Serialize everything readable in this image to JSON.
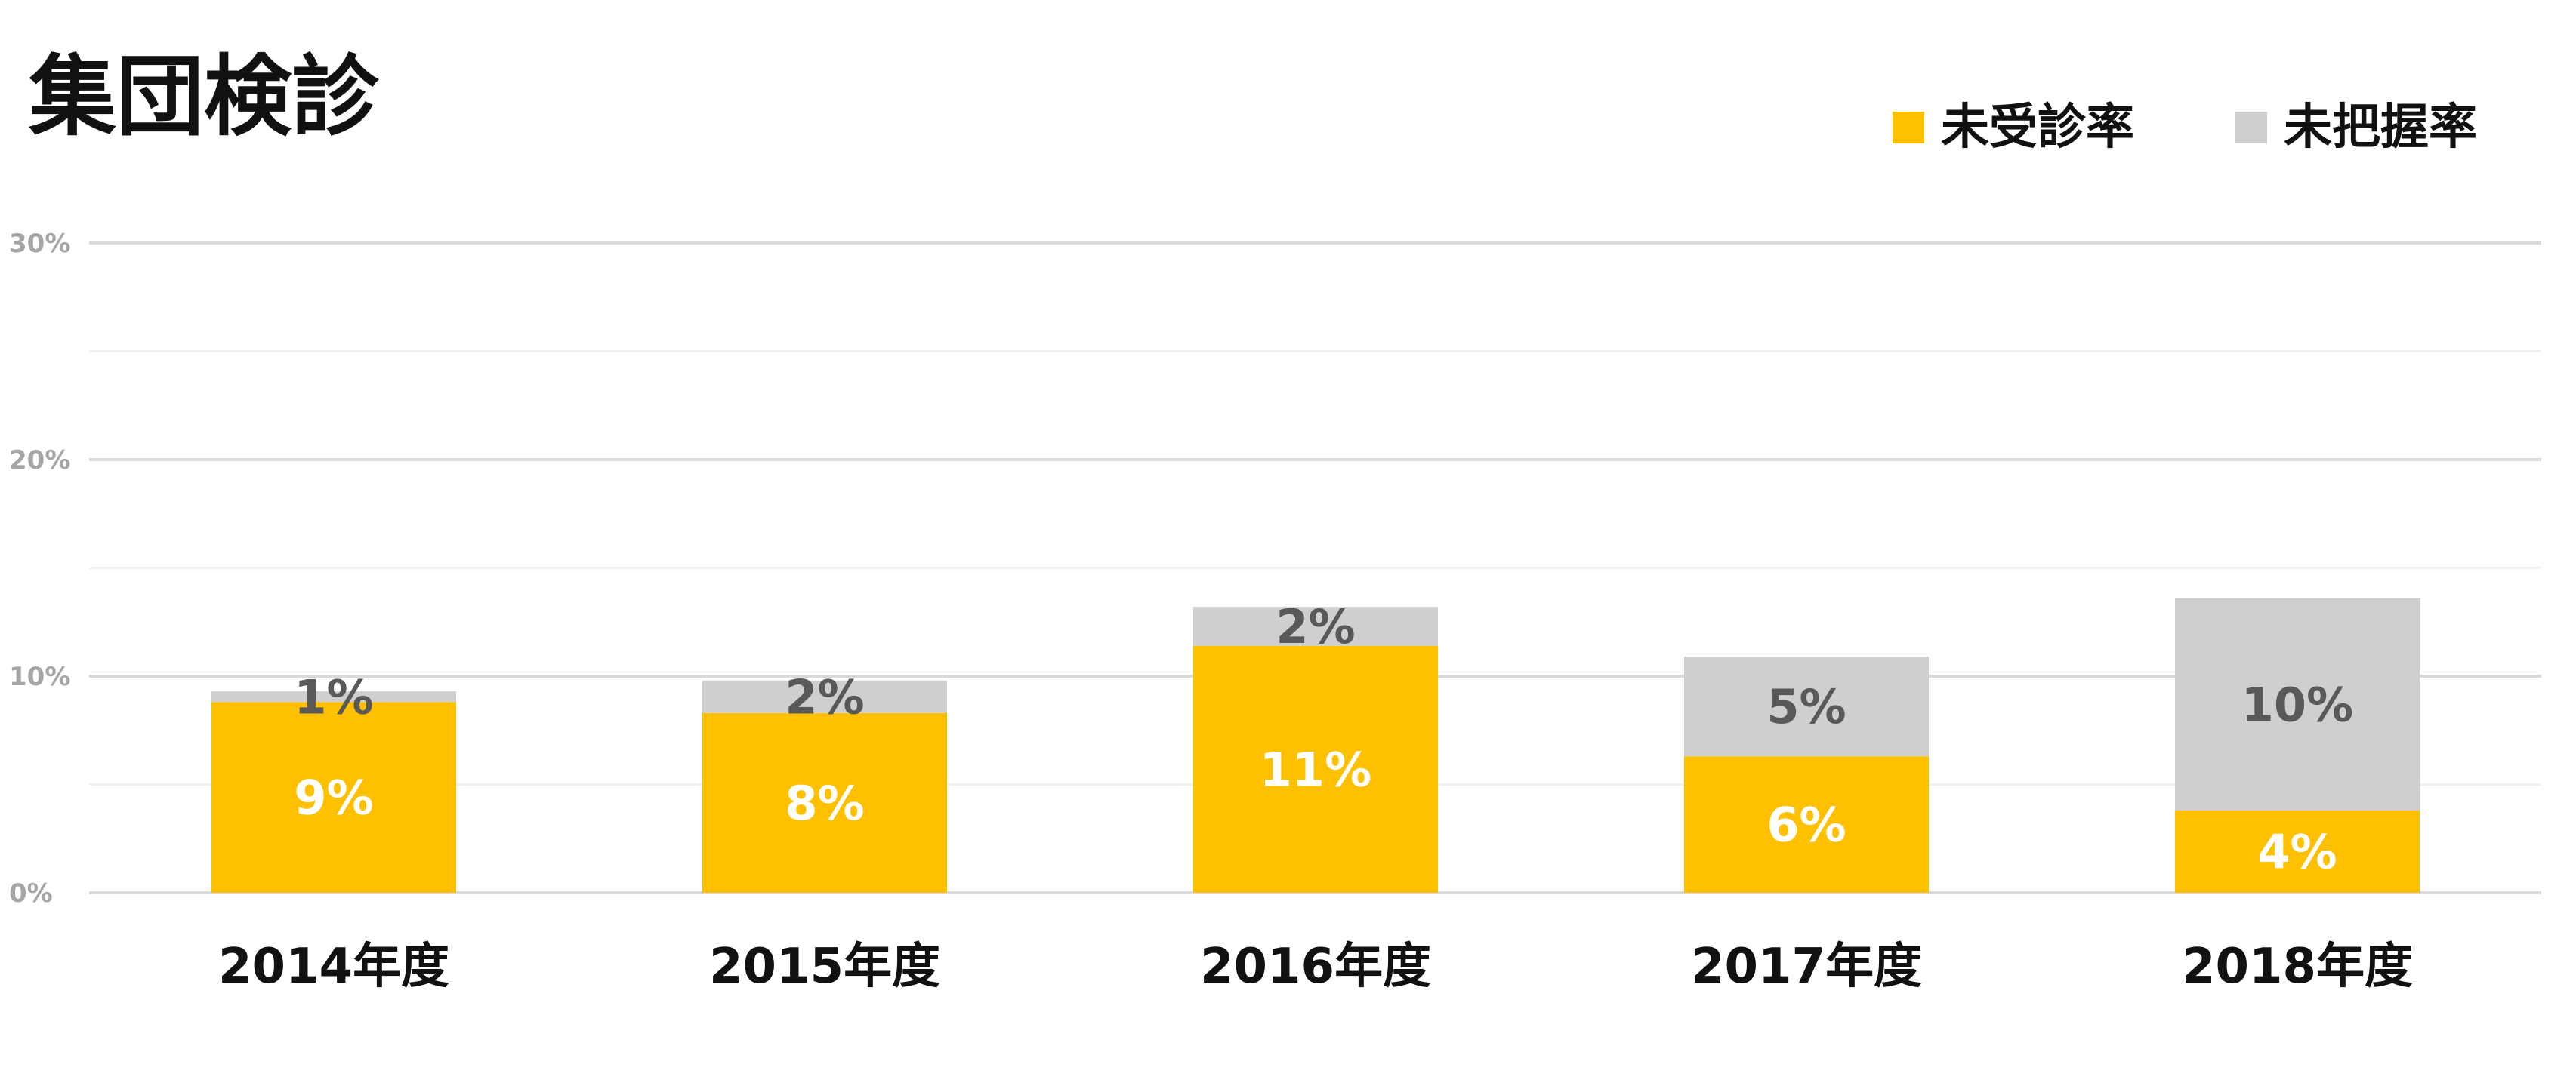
{
  "chart_data": {
    "type": "bar",
    "stacked": true,
    "title": "集団検診",
    "categories": [
      "2014年度",
      "2015年度",
      "2016年度",
      "2017年度",
      "2018年度"
    ],
    "series": [
      {
        "name": "未受診率",
        "color": "#FFC000",
        "values": [
          8.8,
          8.3,
          11.4,
          6.3,
          3.8
        ],
        "labels": [
          "9%",
          "8%",
          "11%",
          "6%",
          "4%"
        ]
      },
      {
        "name": "未把握率",
        "color": "#D0CECE",
        "values": [
          0.5,
          1.5,
          1.8,
          4.6,
          9.8
        ],
        "labels": [
          "1%",
          "2%",
          "2%",
          "5%",
          "10%"
        ]
      }
    ],
    "ylim": [
      0,
      30
    ],
    "yticks": [
      0,
      10,
      20,
      30
    ],
    "ytick_labels": [
      "0%",
      "10%",
      "20%",
      "30%"
    ],
    "grid": true,
    "legend_position": "top-right"
  }
}
